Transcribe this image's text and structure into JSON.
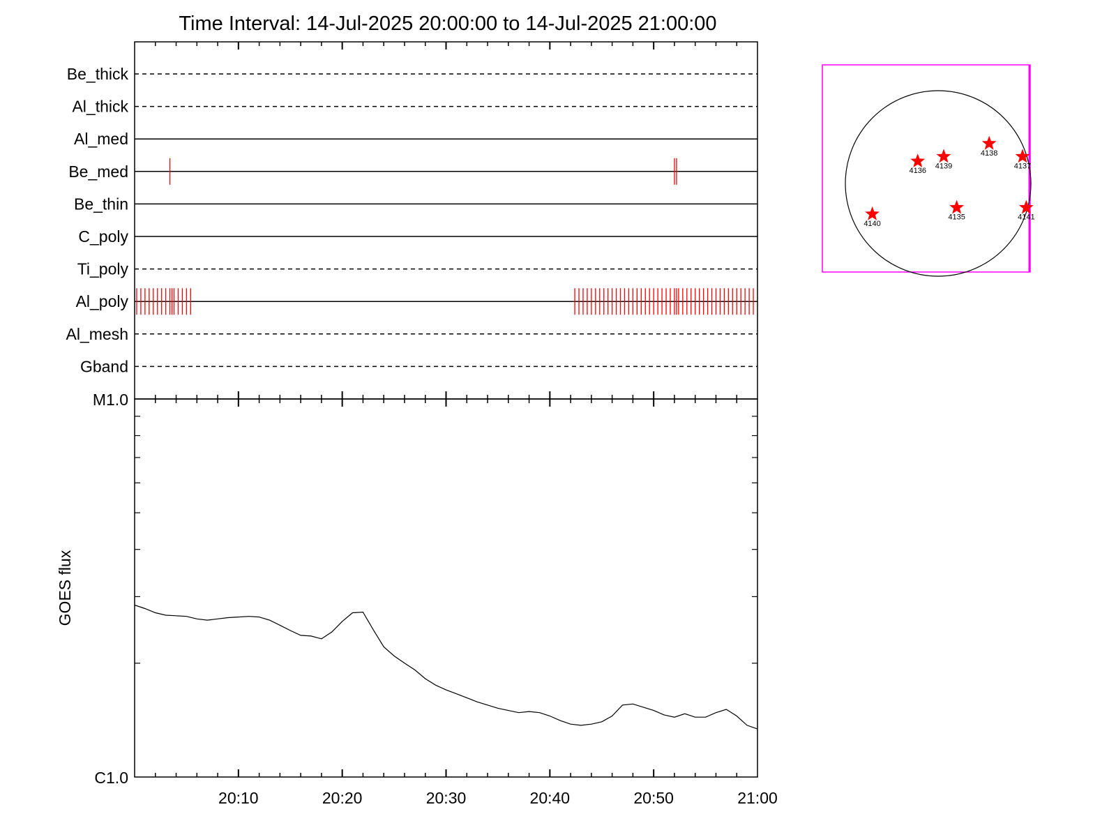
{
  "title": "Time Interval: 14-Jul-2025 20:00:00 to 14-Jul-2025 21:00:00",
  "chart_data": [
    {
      "type": "event-timeline",
      "x_unit": "minutes after 20:00",
      "xlim": [
        0,
        60
      ],
      "rows": [
        {
          "label": "Be_thick",
          "line": "dashed",
          "events": []
        },
        {
          "label": "Al_thick",
          "line": "dashed",
          "events": []
        },
        {
          "label": "Al_med",
          "line": "solid",
          "events": []
        },
        {
          "label": "Be_med",
          "line": "solid",
          "events": [
            3.4,
            52.0,
            52.2
          ]
        },
        {
          "label": "Be_thin",
          "line": "solid",
          "events": []
        },
        {
          "label": "C_poly",
          "line": "solid",
          "events": []
        },
        {
          "label": "Ti_poly",
          "line": "dashed",
          "events": []
        },
        {
          "label": "Al_poly",
          "line": "solid",
          "events": [
            0.2,
            0.6,
            1.0,
            1.4,
            1.8,
            2.2,
            2.6,
            3.0,
            3.4,
            3.6,
            3.8,
            4.2,
            4.6,
            5.0,
            5.4,
            42.4,
            42.8,
            43.2,
            43.6,
            44.0,
            44.4,
            44.8,
            45.2,
            45.6,
            46.0,
            46.4,
            46.8,
            47.2,
            47.6,
            48.0,
            48.4,
            48.8,
            49.2,
            49.6,
            50.0,
            50.4,
            50.8,
            51.2,
            51.6,
            52.0,
            52.2,
            52.4,
            52.8,
            53.2,
            53.6,
            54.0,
            54.4,
            54.8,
            55.2,
            55.6,
            56.0,
            56.4,
            56.8,
            57.2,
            57.6,
            58.0,
            58.4,
            58.8,
            59.2,
            59.6
          ]
        },
        {
          "label": "Al_mesh",
          "line": "dashed",
          "events": []
        },
        {
          "label": "Gband",
          "line": "dashed",
          "events": []
        }
      ],
      "event_color": "#ff0000"
    },
    {
      "type": "line",
      "ylabel": "GOES flux",
      "y_scale": "log",
      "ylim": [
        1e-06,
        1e-05
      ],
      "y_tick_labels": [
        {
          "value": 1e-05,
          "label": "M1.0"
        },
        {
          "value": 1e-06,
          "label": "C1.0"
        }
      ],
      "xlim": [
        0,
        60
      ],
      "x_tick_labels": [
        {
          "value": 10,
          "label": "20:10"
        },
        {
          "value": 20,
          "label": "20:20"
        },
        {
          "value": 30,
          "label": "20:30"
        },
        {
          "value": 40,
          "label": "20:40"
        },
        {
          "value": 50,
          "label": "20:50"
        },
        {
          "value": 60,
          "label": "21:00"
        }
      ],
      "series": [
        {
          "x": [
            0,
            1,
            2,
            3,
            4,
            5,
            6,
            7,
            8,
            9,
            10,
            11,
            12,
            13,
            14,
            15,
            16,
            17,
            18,
            19,
            20,
            21,
            22,
            23,
            24,
            25,
            26,
            27,
            28,
            29,
            30,
            31,
            32,
            33,
            34,
            35,
            36,
            37,
            38,
            39,
            40,
            41,
            42,
            43,
            44,
            45,
            46,
            47,
            48,
            49,
            50,
            51,
            52,
            53,
            54,
            55,
            56,
            57,
            58,
            59,
            60
          ],
          "y": [
            2.85e-06,
            2.79e-06,
            2.72e-06,
            2.68e-06,
            2.67e-06,
            2.66e-06,
            2.62e-06,
            2.6e-06,
            2.62e-06,
            2.64e-06,
            2.65e-06,
            2.66e-06,
            2.65e-06,
            2.6e-06,
            2.52e-06,
            2.44e-06,
            2.37e-06,
            2.36e-06,
            2.32e-06,
            2.42e-06,
            2.58e-06,
            2.72e-06,
            2.73e-06,
            2.45e-06,
            2.21e-06,
            2.09e-06,
            2e-06,
            1.92e-06,
            1.82e-06,
            1.75e-06,
            1.7e-06,
            1.66e-06,
            1.62e-06,
            1.58e-06,
            1.55e-06,
            1.52e-06,
            1.5e-06,
            1.48e-06,
            1.49e-06,
            1.48e-06,
            1.45e-06,
            1.41e-06,
            1.38e-06,
            1.37e-06,
            1.38e-06,
            1.4e-06,
            1.45e-06,
            1.55e-06,
            1.56e-06,
            1.53e-06,
            1.5e-06,
            1.46e-06,
            1.44e-06,
            1.47e-06,
            1.44e-06,
            1.44e-06,
            1.48e-06,
            1.51e-06,
            1.45e-06,
            1.37e-06,
            1.34e-06
          ]
        }
      ]
    },
    {
      "type": "scatter",
      "description": "solar disk with active regions",
      "coordinate_unit": "fraction of solar radius (x right, y up)",
      "points": [
        {
          "label": "4135",
          "x": 0.2,
          "y": -0.26
        },
        {
          "label": "4136",
          "x": -0.22,
          "y": 0.24
        },
        {
          "label": "4137",
          "x": 0.91,
          "y": 0.29
        },
        {
          "label": "4138",
          "x": 0.55,
          "y": 0.43
        },
        {
          "label": "4139",
          "x": 0.06,
          "y": 0.29
        },
        {
          "label": "4140",
          "x": -0.71,
          "y": -0.33
        },
        {
          "label": "4141",
          "x": 0.95,
          "y": -0.26
        }
      ],
      "marker_color": "#ff0000",
      "frame_color": "#ff00ff"
    }
  ]
}
